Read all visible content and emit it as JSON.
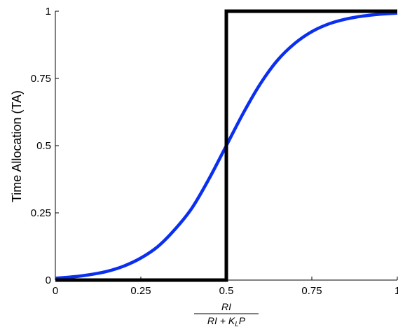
{
  "chart_data": {
    "type": "line",
    "ylabel": "Time Allocation (TA)",
    "xlabel": {
      "numerator": "RI",
      "denominator_main": "RI + K",
      "denominator_sub": "L",
      "denominator_tail": "P"
    },
    "xlim": [
      0,
      1
    ],
    "ylim": [
      0,
      1
    ],
    "x_ticks": [
      0,
      0.25,
      0.5,
      0.75,
      1
    ],
    "x_tick_labels": [
      "0",
      "0.25",
      "0.5",
      "0.75",
      "1"
    ],
    "y_ticks": [
      0,
      0.25,
      0.5,
      0.75,
      1
    ],
    "y_tick_labels": [
      "0",
      "0.25",
      "0.5",
      "0.75",
      "1"
    ],
    "grid": false,
    "series": [
      {
        "color": "#0a2ff0",
        "x": [
          0,
          0.05,
          0.1,
          0.15,
          0.2,
          0.25,
          0.3,
          0.35,
          0.4,
          0.45,
          0.5,
          0.55,
          0.6,
          0.65,
          0.7,
          0.75,
          0.8,
          0.85,
          0.9,
          0.95,
          1
        ],
        "y": [
          0.007,
          0.012,
          0.02,
          0.032,
          0.052,
          0.082,
          0.125,
          0.189,
          0.269,
          0.378,
          0.5,
          0.622,
          0.731,
          0.818,
          0.88,
          0.924,
          0.953,
          0.971,
          0.982,
          0.989,
          0.993
        ]
      },
      {
        "color": "#000000",
        "x": [
          0,
          0.5,
          0.5,
          1
        ],
        "y": [
          0,
          0,
          1,
          1
        ]
      }
    ]
  }
}
